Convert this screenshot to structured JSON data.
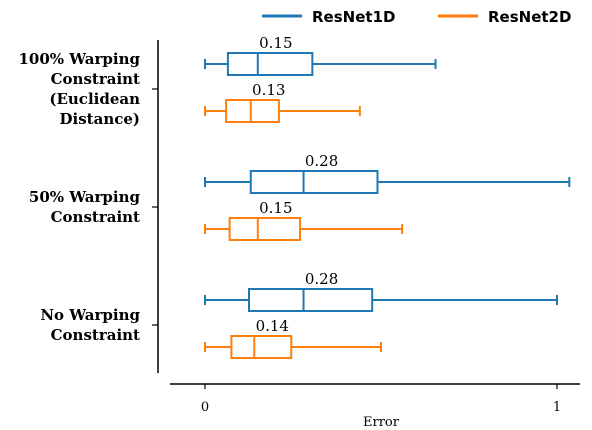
{
  "chart_data": {
    "type": "boxplot",
    "orientation": "horizontal",
    "xlabel": "Error",
    "xticks": [
      0,
      1
    ],
    "xlim": [
      -0.1,
      1.1
    ],
    "categories": [
      [
        "100% Warping",
        "Constraint",
        "(Euclidean",
        "Distance)"
      ],
      [
        "50% Warping",
        "Constraint"
      ],
      [
        "No Warping",
        "Constraint"
      ]
    ],
    "legend": {
      "position": "top-right"
    },
    "series": [
      {
        "name": "ResNet1D",
        "color": "#1f77b4",
        "boxes": [
          {
            "whisker_low": 0.0,
            "q1": 0.065,
            "median": 0.15,
            "q3": 0.305,
            "whisker_high": 0.655,
            "median_label": "0.15"
          },
          {
            "whisker_low": 0.0,
            "q1": 0.13,
            "median": 0.28,
            "q3": 0.49,
            "whisker_high": 1.035,
            "median_label": "0.28"
          },
          {
            "whisker_low": 0.0,
            "q1": 0.125,
            "median": 0.28,
            "q3": 0.475,
            "whisker_high": 1.0,
            "median_label": "0.28"
          }
        ]
      },
      {
        "name": "ResNet2D",
        "color": "#ff7f0e",
        "boxes": [
          {
            "whisker_low": 0.0,
            "q1": 0.06,
            "median": 0.13,
            "q3": 0.21,
            "whisker_high": 0.44,
            "median_label": "0.13"
          },
          {
            "whisker_low": 0.0,
            "q1": 0.07,
            "median": 0.15,
            "q3": 0.27,
            "whisker_high": 0.56,
            "median_label": "0.15"
          },
          {
            "whisker_low": 0.0,
            "q1": 0.075,
            "median": 0.14,
            "q3": 0.245,
            "whisker_high": 0.5,
            "median_label": "0.14"
          }
        ]
      }
    ]
  }
}
